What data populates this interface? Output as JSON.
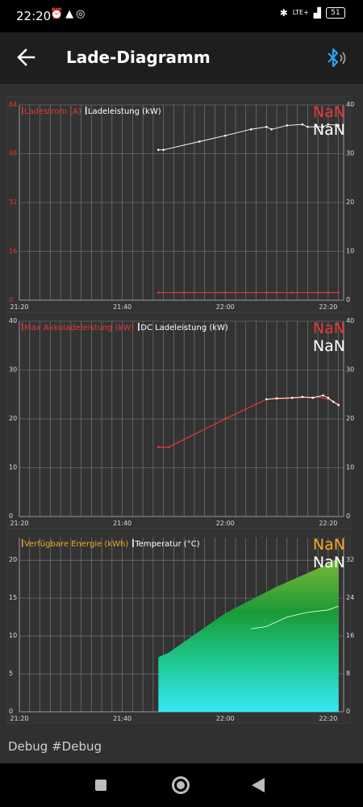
{
  "status_bar": {
    "time": "22:20",
    "network": "LTE+",
    "battery": "51"
  },
  "app_bar": {
    "title": "Lade-Diagramm"
  },
  "x_tick_labels": [
    "21:20",
    "21:40",
    "22:00",
    "22:20"
  ],
  "chart_data": [
    {
      "type": "line",
      "legend": [
        {
          "name": "Ladestrom (A)",
          "color": "#e53935"
        },
        {
          "name": "Ladeleistung (kW)",
          "color": "#ffffff"
        }
      ],
      "readouts": [
        {
          "text": "NaN",
          "color": "#e53935"
        },
        {
          "text": "NaN",
          "color": "#ffffff"
        }
      ],
      "left_axis": {
        "ticks": [
          "0",
          "16",
          "32",
          "48",
          "64"
        ],
        "range": [
          0,
          64
        ],
        "color": "#e53935"
      },
      "right_axis": {
        "ticks": [
          "0",
          "10",
          "20",
          "30",
          "40"
        ],
        "range": [
          0,
          40
        ]
      },
      "series": [
        {
          "name": "Ladestrom (A)",
          "axis": "left",
          "color": "#e53935",
          "x": [
            "21:47",
            "21:52",
            "22:00",
            "22:08",
            "22:10",
            "22:13",
            "22:18",
            "22:20",
            "22:22"
          ],
          "y": [
            2.5,
            2.5,
            2.5,
            2.5,
            2.5,
            2.5,
            2.5,
            2.5,
            2.5
          ]
        },
        {
          "name": "Ladeleistung (kW)",
          "axis": "right",
          "color": "#ffffff",
          "x": [
            "21:47",
            "21:48",
            "21:55",
            "22:00",
            "22:05",
            "22:08",
            "22:09",
            "22:12",
            "22:15",
            "22:16",
            "22:19",
            "22:20",
            "22:22"
          ],
          "y": [
            30.8,
            30.8,
            32.5,
            33.7,
            35.0,
            35.5,
            35.0,
            35.8,
            36.0,
            35.5,
            35.5,
            36.0,
            35.8
          ]
        }
      ]
    },
    {
      "type": "line",
      "legend": [
        {
          "name": "Max Akkuladeleistung (kW)",
          "color": "#e53935"
        },
        {
          "name": "DC Ladeleistung (kW)",
          "color": "#ffffff"
        }
      ],
      "readouts": [
        {
          "text": "NaN",
          "color": "#e53935"
        },
        {
          "text": "NaN",
          "color": "#ffffff"
        }
      ],
      "left_axis": {
        "ticks": [
          "0",
          "10",
          "20",
          "30",
          "40"
        ],
        "range": [
          0,
          40
        ]
      },
      "right_axis": {
        "ticks": [
          "0",
          "10",
          "20",
          "30",
          "40"
        ],
        "range": [
          0,
          40
        ]
      },
      "series": [
        {
          "name": "Max Akkuladeleistung (kW)",
          "axis": "left",
          "color": "#e53935",
          "x": [
            "21:47",
            "21:49",
            "22:00",
            "22:08",
            "22:12",
            "22:18",
            "22:20",
            "22:22"
          ],
          "y": [
            14.2,
            14.2,
            20.0,
            24.0,
            24.2,
            24.5,
            24.0,
            23.0
          ]
        },
        {
          "name": "DC Ladeleistung (kW)",
          "axis": "right",
          "color": "#ffffff",
          "x": [
            "22:08",
            "22:10",
            "22:13",
            "22:15",
            "22:17",
            "22:19",
            "22:20",
            "22:21",
            "22:22"
          ],
          "y": [
            24.0,
            24.2,
            24.3,
            24.5,
            24.3,
            24.8,
            24.3,
            23.5,
            22.8
          ]
        }
      ]
    },
    {
      "type": "area",
      "legend": [
        {
          "name": "Verfügbare Energie (kWh)",
          "color": "#f5a623"
        },
        {
          "name": "Temperatur (°C)",
          "color": "#ffffff"
        }
      ],
      "readouts": [
        {
          "text": "NaN",
          "color": "#f5a623"
        },
        {
          "text": "NaN",
          "color": "#ffffff"
        }
      ],
      "left_axis": {
        "ticks": [
          "0",
          "5",
          "10",
          "15",
          "20"
        ],
        "range": [
          0,
          23
        ]
      },
      "right_axis": {
        "ticks": [
          "0",
          "8",
          "16",
          "24",
          "32"
        ],
        "range": [
          0,
          36.8
        ]
      },
      "series": [
        {
          "name": "Verfügbare Energie (kWh)",
          "axis": "left",
          "color": "#2e9d3a",
          "x": [
            "21:47",
            "21:49",
            "22:00",
            "22:10",
            "22:20",
            "22:22"
          ],
          "y": [
            7.2,
            7.8,
            13.0,
            16.5,
            19.5,
            20.3
          ]
        },
        {
          "name": "Temperatur (°C)",
          "axis": "right",
          "color": "#ffffff",
          "x": [
            "22:05",
            "22:08",
            "22:12",
            "22:16",
            "22:20",
            "22:22"
          ],
          "y": [
            17.5,
            18.0,
            20.0,
            21.0,
            21.5,
            22.3
          ]
        }
      ]
    }
  ],
  "footer": {
    "debug_label": "Debug #Debug"
  }
}
